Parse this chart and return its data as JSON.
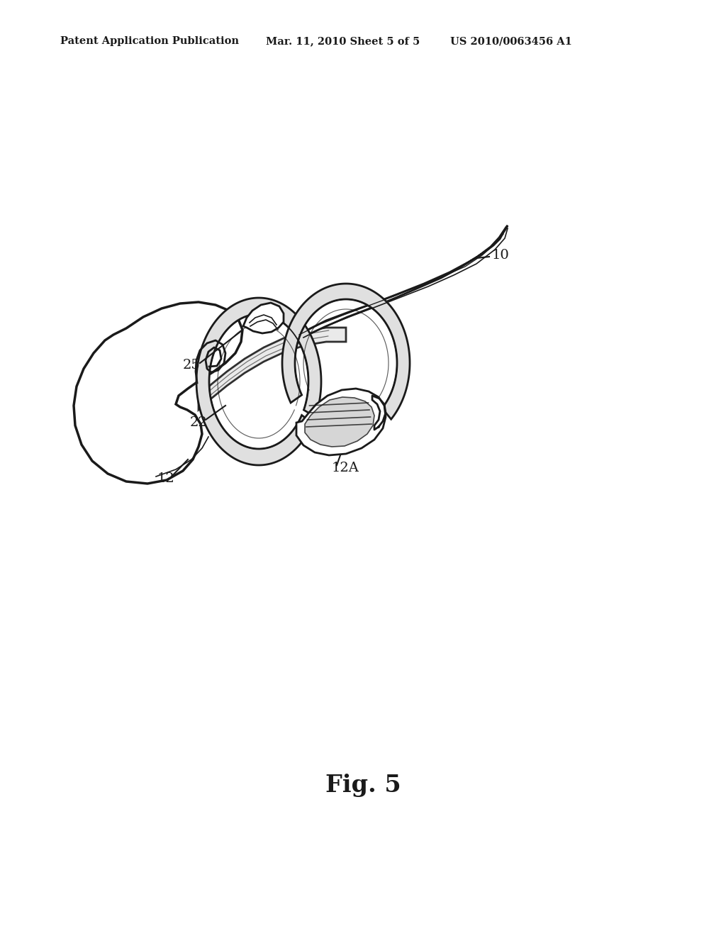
{
  "header_left": "Patent Application Publication",
  "header_center": "Mar. 11, 2010 Sheet 5 of 5",
  "header_right": "US 2010/0063456 A1",
  "fig_label": "Fig. 5",
  "bg_color": "#ffffff",
  "line_color": "#1a1a1a",
  "header_fontsize": 10.5,
  "fig_label_fontsize": 24,
  "label_fontsize": 14,
  "lw_main": 2.0,
  "lw_thin": 1.2,
  "lw_thick": 2.5
}
